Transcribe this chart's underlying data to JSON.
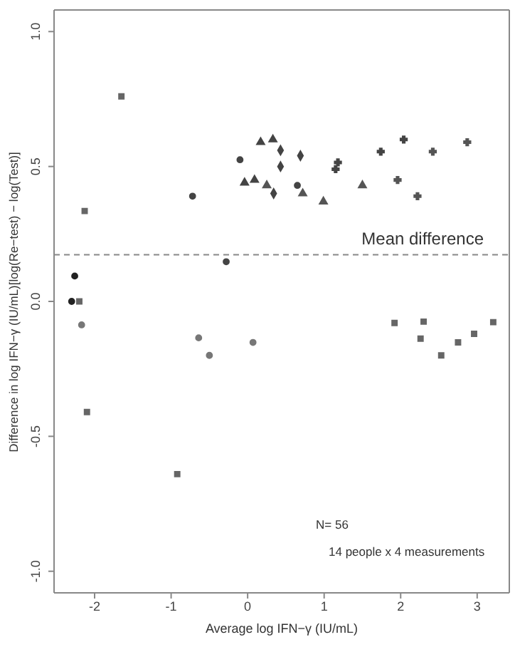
{
  "chart_data": {
    "type": "scatter",
    "xlabel": "Average log IFN−γ (IU/mL)",
    "ylabel": "Difference in log IFN−γ (IU/mL)[log(Re−test) − log(Test)]",
    "xlim": [
      -2.53,
      3.42
    ],
    "ylim": [
      -1.08,
      1.08
    ],
    "xticks": [
      -2,
      -1,
      0,
      1,
      2,
      3
    ],
    "yticks": [
      {
        "value": -1,
        "label": "-1.0"
      },
      {
        "value": -0.5,
        "label": "-0.5"
      },
      {
        "value": 0,
        "label": "0.0"
      },
      {
        "value": 0.5,
        "label": "0.5"
      },
      {
        "value": 1,
        "label": "1.0"
      }
    ],
    "grid": false,
    "ref_lines": [
      {
        "axis": "y",
        "value": 0.173,
        "label": "Mean difference",
        "color": "#888888",
        "line_style": "dashed"
      }
    ],
    "annotations": [
      "N= 56",
      "14 people x 4 measurements"
    ],
    "series": [
      {
        "marker": "circle",
        "color": "#444444",
        "x": [
          -0.72,
          -0.28,
          -0.1,
          0.65
        ],
        "values": [
          0.39,
          0.147,
          0.525,
          0.43
        ]
      },
      {
        "marker": "triangle",
        "color": "#444444",
        "x": [
          0.17,
          0.33,
          -0.04,
          0.09
        ],
        "values": [
          0.59,
          0.6,
          0.44,
          0.45
        ]
      },
      {
        "marker": "diamond",
        "color": "#444444",
        "x": [
          0.43,
          0.43,
          0.69,
          0.34
        ],
        "values": [
          0.56,
          0.5,
          0.54,
          0.4
        ]
      },
      {
        "marker": "triangle",
        "color": "#555555",
        "x": [
          0.25,
          0.72,
          0.99,
          1.5
        ],
        "values": [
          0.43,
          0.4,
          0.37,
          0.43
        ]
      },
      {
        "marker": "cross",
        "color": "#444444",
        "x": [
          1.18,
          1.15,
          1.74,
          2.04
        ],
        "values": [
          0.515,
          0.49,
          0.555,
          0.6
        ]
      },
      {
        "marker": "cross",
        "color": "#555555",
        "x": [
          1.96,
          2.22,
          2.42,
          2.87
        ],
        "values": [
          0.45,
          0.39,
          0.555,
          0.59
        ]
      },
      {
        "marker": "square",
        "color": "#666666",
        "x": [
          -1.65,
          -2.13,
          -2.2,
          -2.1,
          -0.92,
          1.92,
          2.3,
          2.26,
          2.53,
          2.75,
          2.96,
          3.21
        ],
        "values": [
          0.76,
          0.335,
          0.0,
          -0.41,
          -0.64,
          -0.08,
          -0.075,
          -0.138,
          -0.2,
          -0.152,
          -0.12,
          -0.077
        ]
      },
      {
        "marker": "circle",
        "color": "#222222",
        "x": [
          -2.26,
          -2.3
        ],
        "values": [
          0.094,
          0.0
        ]
      },
      {
        "marker": "circle",
        "color": "#777777",
        "x": [
          -2.17,
          -0.64,
          -0.5,
          0.07
        ],
        "values": [
          -0.087,
          -0.135,
          -0.2,
          -0.152
        ]
      }
    ]
  }
}
